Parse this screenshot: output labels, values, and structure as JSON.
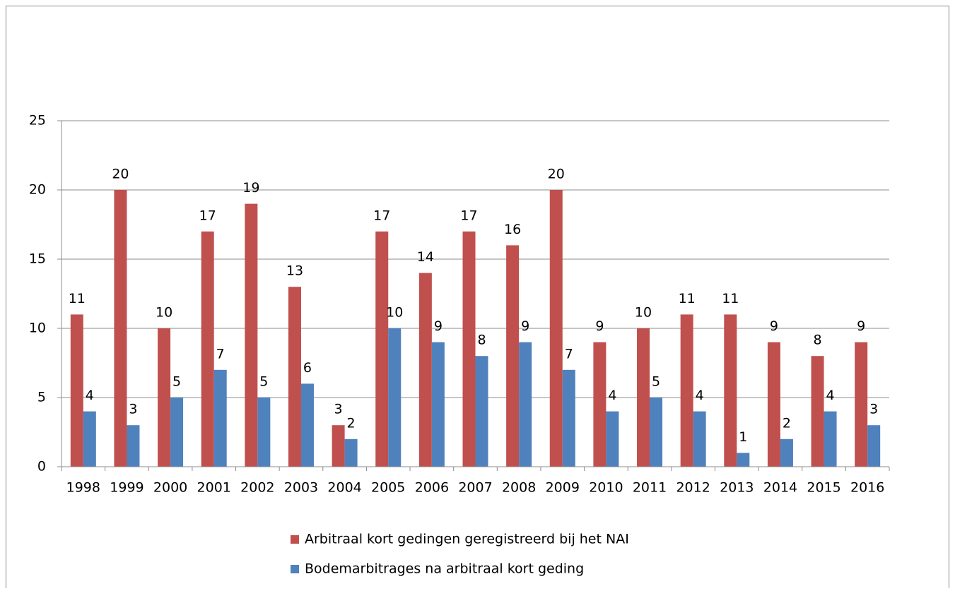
{
  "chart_data": {
    "type": "bar",
    "categories": [
      "1998",
      "1999",
      "2000",
      "2001",
      "2002",
      "2003",
      "2004",
      "2005",
      "2006",
      "2007",
      "2008",
      "2009",
      "2010",
      "2011",
      "2012",
      "2013",
      "2014",
      "2015",
      "2016"
    ],
    "series": [
      {
        "name": "Arbitraal kort gedingen geregistreerd bij het NAI",
        "color": "#c0504d",
        "values": [
          11,
          20,
          10,
          17,
          19,
          13,
          3,
          17,
          14,
          17,
          16,
          20,
          9,
          10,
          11,
          11,
          9,
          8,
          9
        ]
      },
      {
        "name": "Bodemarbitrages na arbitraal kort geding",
        "color": "#4f81bd",
        "values": [
          4,
          3,
          5,
          7,
          5,
          6,
          2,
          10,
          9,
          8,
          9,
          7,
          4,
          5,
          4,
          1,
          2,
          4,
          3
        ]
      }
    ],
    "ylim": [
      0,
      25
    ],
    "yticks": [
      0,
      5,
      10,
      15,
      20,
      25
    ],
    "grid": true,
    "legend": "bottom"
  }
}
